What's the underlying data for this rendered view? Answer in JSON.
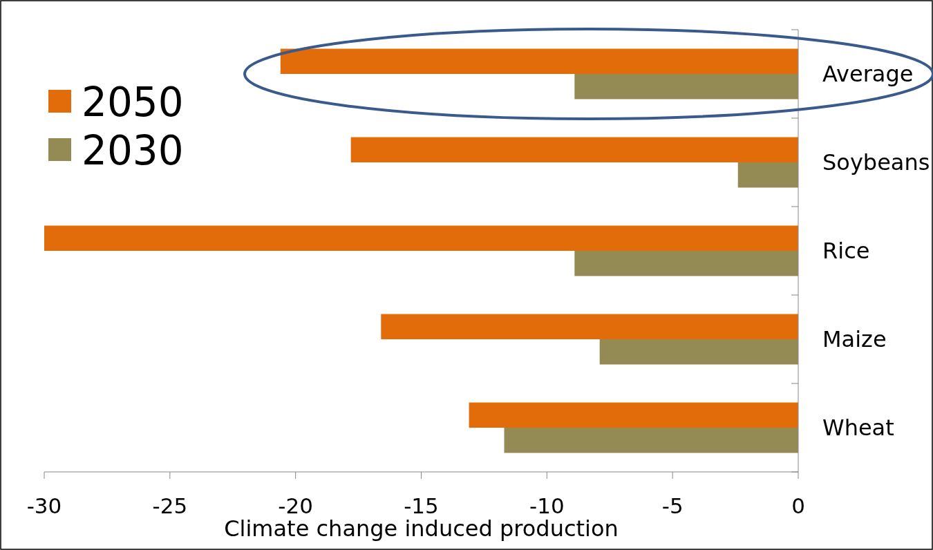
{
  "chart_data": {
    "type": "bar",
    "orientation": "horizontal",
    "xlabel": "Climate change induced production",
    "categories": [
      "Average",
      "Soybeans",
      "Rice",
      "Maize",
      "Wheat"
    ],
    "series": [
      {
        "name": "2050",
        "color": "#e36c0a",
        "values": [
          -20.6,
          -17.8,
          -30,
          -16.6,
          -13.1
        ]
      },
      {
        "name": "2030",
        "color": "#948a54",
        "values": [
          -8.9,
          -2.4,
          -8.9,
          -7.9,
          -11.7
        ]
      }
    ],
    "xlim": [
      -30,
      0
    ],
    "xticks": [
      -30,
      -25,
      -20,
      -15,
      -10,
      -5,
      0
    ],
    "grid": false,
    "legend": "top left"
  }
}
